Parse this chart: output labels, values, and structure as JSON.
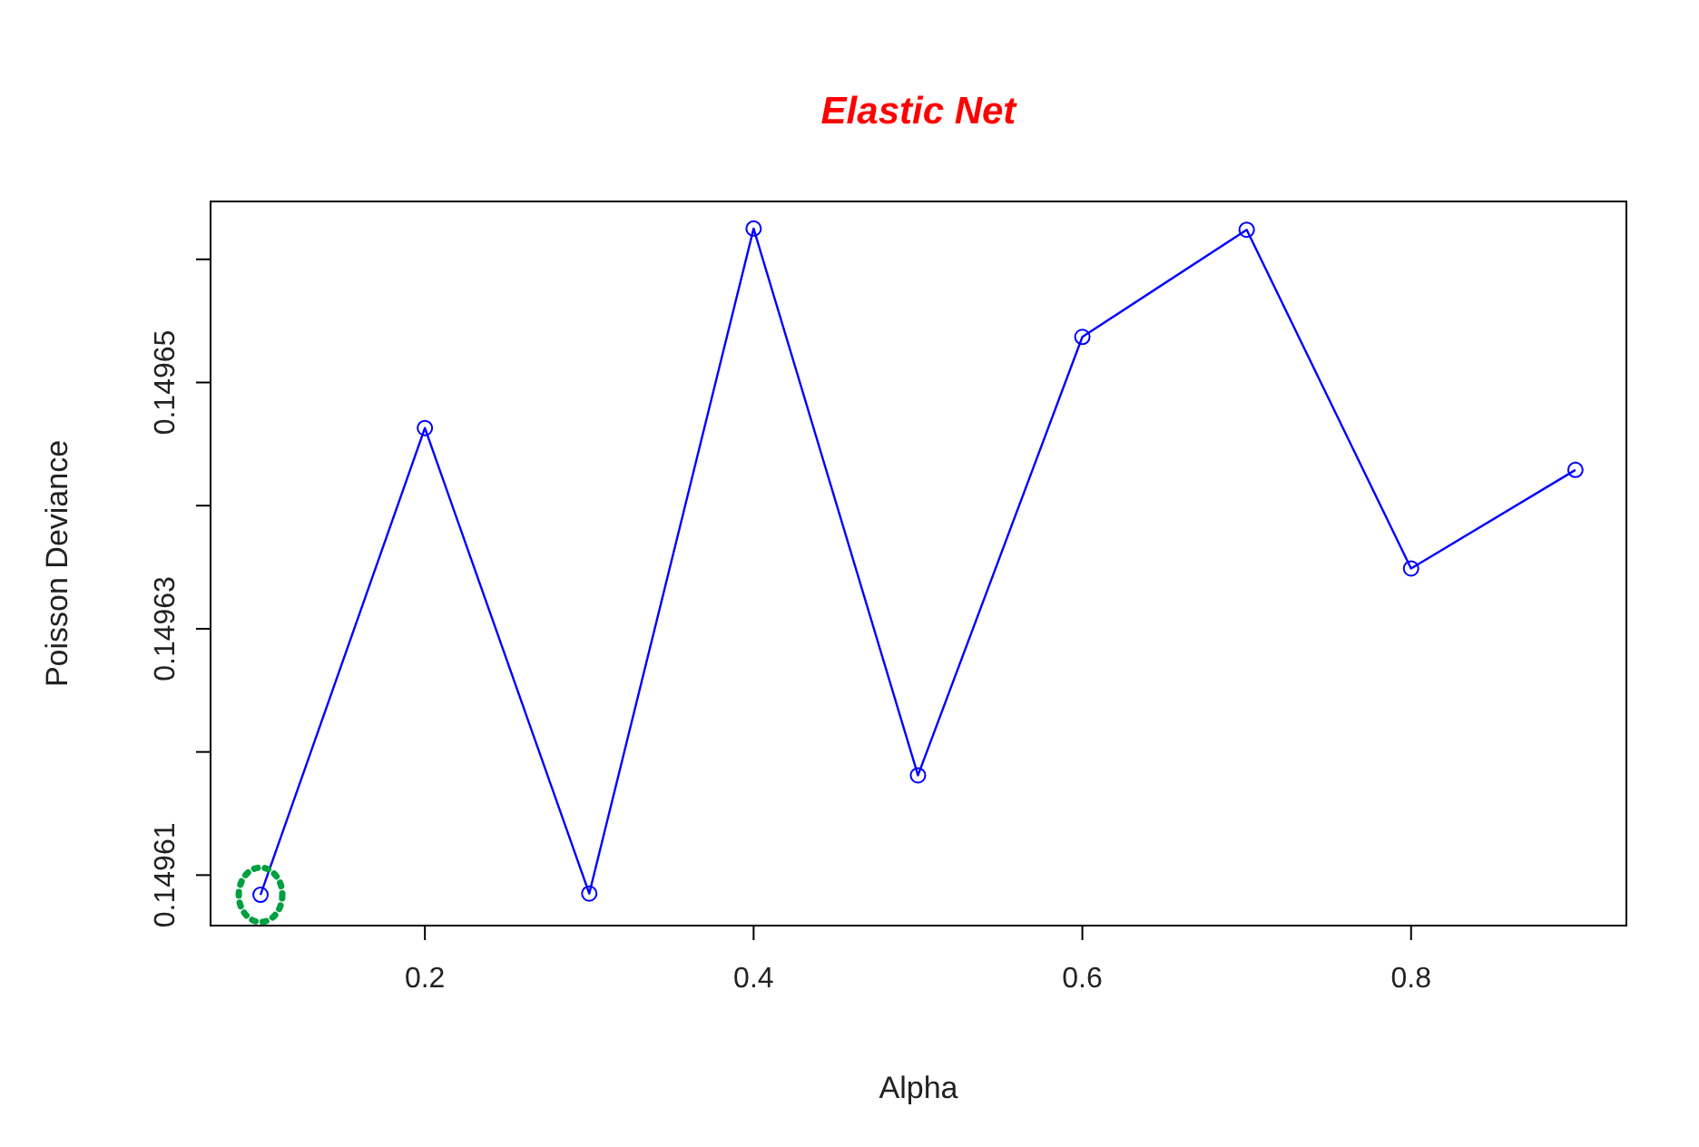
{
  "chart_data": {
    "type": "line",
    "title": "Elastic Net",
    "xlabel": "Alpha",
    "ylabel": "Poisson Deviance",
    "x": [
      0.1,
      0.2,
      0.3,
      0.4,
      0.5,
      0.6,
      0.7,
      0.8,
      0.9
    ],
    "series": [
      {
        "color": "#0000ff",
        "values": [
          0.1496084,
          0.1496463,
          0.1496085,
          0.1496625,
          0.1496181,
          0.1496537,
          0.1496624,
          0.1496349,
          0.1496429
        ]
      }
    ],
    "xlim": [
      0.0696,
      0.931
    ],
    "ylim": [
      0.1496059,
      0.1496647
    ],
    "xticks": [
      0.2,
      0.4,
      0.6,
      0.8
    ],
    "yticks": [
      {
        "value": 0.14961,
        "label": "0.14961"
      },
      {
        "value": 0.14962,
        "label": null
      },
      {
        "value": 0.14963,
        "label": "0.14963"
      },
      {
        "value": 0.14964,
        "label": null
      },
      {
        "value": 0.14965,
        "label": "0.14965"
      },
      {
        "value": 0.14966,
        "label": null
      }
    ],
    "marker": "circle",
    "line_style": "solid",
    "grid": false
  }
}
